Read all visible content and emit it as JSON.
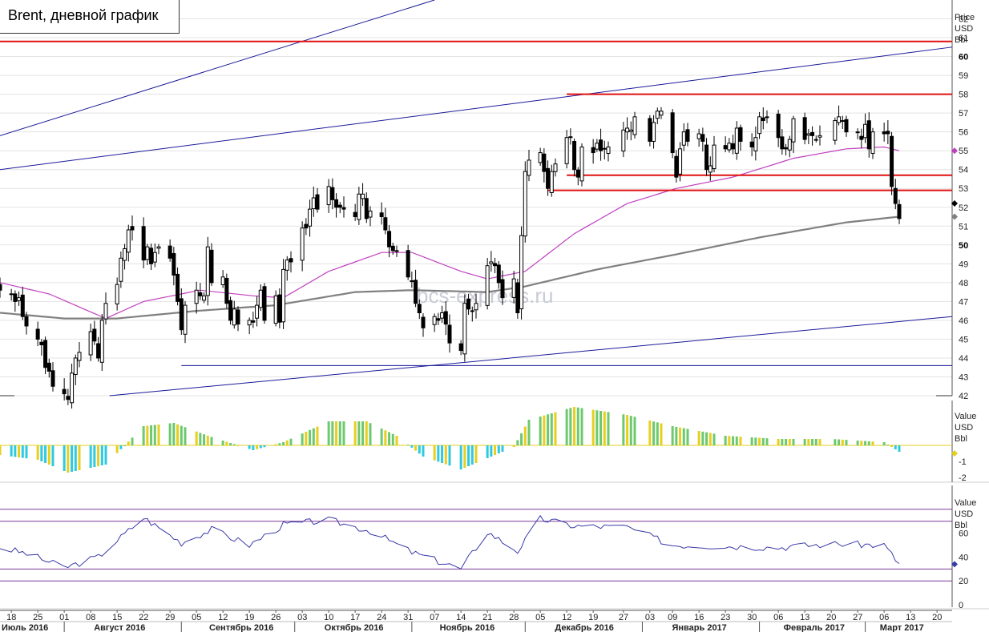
{
  "title": "Brent, дневной график",
  "watermark": "bcs-express.ru",
  "colors": {
    "bg": "#ffffff",
    "grid": "#e3e3e3",
    "candle": "#000000",
    "red_level": "#e01010",
    "trend_line": "#1a1a9a",
    "ma_fast": "#c040c0",
    "ma_slow": "#808080",
    "hist_yellow": "#e6cf1f",
    "hist_cyan": "#2fc9e0",
    "hist_green": "#6ec86e",
    "rsi_line": "#3a3aa8",
    "rsi_band": "#7a3a9a"
  },
  "price_axis": {
    "title_lines": [
      "Price",
      "USD",
      "Bbl"
    ]
  },
  "macd_axis": {
    "title_lines": [
      "Value",
      "USD",
      "Bbl"
    ]
  },
  "rsi_axis": {
    "title_lines": [
      "Value",
      "USD",
      "Bbl"
    ]
  },
  "x_day_labels": [
    "18",
    "25",
    "01",
    "08",
    "15",
    "22",
    "29",
    "05",
    "12",
    "19",
    "26",
    "03",
    "10",
    "17",
    "24",
    "31",
    "07",
    "14",
    "21",
    "28",
    "05",
    "12",
    "19",
    "27",
    "03",
    "09",
    "16",
    "23",
    "30",
    "06",
    "13",
    "20",
    "27",
    "06",
    "13",
    "20"
  ],
  "x_month_labels": [
    "Июль 2016",
    "Август 2016",
    "Сентябрь 2016",
    "Октябрь 2016",
    "Ноябрь 2016",
    "Декабрь 2016",
    "Январь 2017",
    "Февраль 2017",
    "Март 2017"
  ],
  "chart_data": [
    {
      "type": "candlestick",
      "title": "Brent, дневной график",
      "ylabel": "Price USD Bbl",
      "ylim": [
        42,
        63
      ],
      "yticks": [
        42,
        43,
        44,
        45,
        46,
        47,
        48,
        49,
        50,
        51,
        52,
        53,
        54,
        55,
        56,
        57,
        58,
        59,
        60,
        61,
        62
      ],
      "ytick_bold": [
        50,
        60
      ],
      "x_range": [
        "2016-07-15",
        "2017-03-24"
      ],
      "close_series": [
        [
          "2016-07-15",
          47.6
        ],
        [
          "2016-07-18",
          47.4
        ],
        [
          "2016-07-19",
          47.0
        ],
        [
          "2016-07-20",
          47.2
        ],
        [
          "2016-07-21",
          46.2
        ],
        [
          "2016-07-22",
          45.7
        ],
        [
          "2016-07-25",
          45.0
        ],
        [
          "2016-07-26",
          44.7
        ],
        [
          "2016-07-27",
          43.5
        ],
        [
          "2016-07-28",
          43.3
        ],
        [
          "2016-07-29",
          42.5
        ],
        [
          "2016-08-01",
          42.1
        ],
        [
          "2016-08-02",
          41.8
        ],
        [
          "2016-08-03",
          43.2
        ],
        [
          "2016-08-04",
          44.0
        ],
        [
          "2016-08-05",
          44.3
        ],
        [
          "2016-08-08",
          45.4
        ],
        [
          "2016-08-09",
          44.9
        ],
        [
          "2016-08-10",
          44.0
        ],
        [
          "2016-08-11",
          46.0
        ],
        [
          "2016-08-12",
          46.9
        ],
        [
          "2016-08-15",
          47.9
        ],
        [
          "2016-08-16",
          49.3
        ],
        [
          "2016-08-17",
          49.8
        ],
        [
          "2016-08-18",
          50.8
        ],
        [
          "2016-08-19",
          50.8
        ],
        [
          "2016-08-22",
          49.2
        ],
        [
          "2016-08-23",
          49.9
        ],
        [
          "2016-08-24",
          49.0
        ],
        [
          "2016-08-25",
          49.6
        ],
        [
          "2016-08-26",
          49.9
        ],
        [
          "2016-08-29",
          49.3
        ],
        [
          "2016-08-30",
          48.4
        ],
        [
          "2016-08-31",
          47.0
        ],
        [
          "2016-09-01",
          45.5
        ],
        [
          "2016-09-02",
          46.8
        ],
        [
          "2016-09-05",
          47.6
        ],
        [
          "2016-09-06",
          47.3
        ],
        [
          "2016-09-07",
          47.3
        ],
        [
          "2016-09-08",
          49.9
        ],
        [
          "2016-09-09",
          48.0
        ],
        [
          "2016-09-12",
          48.3
        ],
        [
          "2016-09-13",
          46.9
        ],
        [
          "2016-09-14",
          46.0
        ],
        [
          "2016-09-15",
          46.6
        ],
        [
          "2016-09-16",
          45.8
        ],
        [
          "2016-09-19",
          46.0
        ],
        [
          "2016-09-20",
          45.9
        ],
        [
          "2016-09-21",
          46.8
        ],
        [
          "2016-09-22",
          47.6
        ],
        [
          "2016-09-23",
          46.0
        ],
        [
          "2016-09-26",
          47.3
        ],
        [
          "2016-09-27",
          45.9
        ],
        [
          "2016-09-28",
          48.7
        ],
        [
          "2016-09-29",
          49.2
        ],
        [
          "2016-09-30",
          49.1
        ],
        [
          "2016-10-03",
          50.9
        ],
        [
          "2016-10-04",
          50.9
        ],
        [
          "2016-10-05",
          51.9
        ],
        [
          "2016-10-06",
          52.5
        ],
        [
          "2016-10-07",
          51.9
        ],
        [
          "2016-10-10",
          53.1
        ],
        [
          "2016-10-11",
          52.4
        ],
        [
          "2016-10-12",
          52.0
        ],
        [
          "2016-10-13",
          52.0
        ],
        [
          "2016-10-14",
          51.9
        ],
        [
          "2016-10-17",
          51.5
        ],
        [
          "2016-10-18",
          52.7
        ],
        [
          "2016-10-19",
          52.7
        ],
        [
          "2016-10-20",
          51.4
        ],
        [
          "2016-10-21",
          51.8
        ],
        [
          "2016-10-24",
          51.5
        ],
        [
          "2016-10-25",
          50.8
        ],
        [
          "2016-10-26",
          49.9
        ],
        [
          "2016-10-27",
          49.7
        ],
        [
          "2016-10-28",
          49.7
        ],
        [
          "2016-10-31",
          48.3
        ],
        [
          "2016-11-01",
          48.1
        ],
        [
          "2016-11-02",
          46.9
        ],
        [
          "2016-11-03",
          46.4
        ],
        [
          "2016-11-04",
          45.6
        ],
        [
          "2016-11-07",
          46.2
        ],
        [
          "2016-11-08",
          46.0
        ],
        [
          "2016-11-09",
          46.4
        ],
        [
          "2016-11-10",
          45.8
        ],
        [
          "2016-11-11",
          44.8
        ],
        [
          "2016-11-14",
          44.4
        ],
        [
          "2016-11-15",
          46.9
        ],
        [
          "2016-11-16",
          46.6
        ],
        [
          "2016-11-17",
          46.5
        ],
        [
          "2016-11-18",
          46.9
        ],
        [
          "2016-11-21",
          48.9
        ],
        [
          "2016-11-22",
          49.1
        ],
        [
          "2016-11-23",
          48.9
        ],
        [
          "2016-11-24",
          48.0
        ],
        [
          "2016-11-25",
          47.2
        ],
        [
          "2016-11-28",
          48.2
        ],
        [
          "2016-11-29",
          46.4
        ],
        [
          "2016-11-30",
          50.5
        ],
        [
          "2016-12-01",
          53.9
        ],
        [
          "2016-12-02",
          54.5
        ],
        [
          "2016-12-05",
          54.9
        ],
        [
          "2016-12-06",
          53.9
        ],
        [
          "2016-12-07",
          53.0
        ],
        [
          "2016-12-08",
          53.9
        ],
        [
          "2016-12-09",
          54.3
        ],
        [
          "2016-12-12",
          55.7
        ],
        [
          "2016-12-13",
          55.7
        ],
        [
          "2016-12-14",
          54.0
        ],
        [
          "2016-12-15",
          53.6
        ],
        [
          "2016-12-16",
          55.2
        ],
        [
          "2016-12-19",
          54.9
        ],
        [
          "2016-12-20",
          55.4
        ],
        [
          "2016-12-21",
          55.0
        ],
        [
          "2016-12-22",
          55.1
        ],
        [
          "2016-12-23",
          55.2
        ],
        [
          "2016-12-27",
          56.1
        ],
        [
          "2016-12-28",
          56.2
        ],
        [
          "2016-12-29",
          56.1
        ],
        [
          "2016-12-30",
          56.8
        ],
        [
          "2017-01-03",
          55.5
        ],
        [
          "2017-01-04",
          56.5
        ],
        [
          "2017-01-05",
          57.1
        ],
        [
          "2017-01-06",
          57.1
        ],
        [
          "2017-01-09",
          54.9
        ],
        [
          "2017-01-10",
          53.6
        ],
        [
          "2017-01-11",
          55.1
        ],
        [
          "2017-01-12",
          56.0
        ],
        [
          "2017-01-13",
          55.5
        ],
        [
          "2017-01-16",
          55.9
        ],
        [
          "2017-01-17",
          55.5
        ],
        [
          "2017-01-18",
          54.0
        ],
        [
          "2017-01-19",
          54.2
        ],
        [
          "2017-01-20",
          55.3
        ],
        [
          "2017-01-23",
          55.1
        ],
        [
          "2017-01-24",
          55.4
        ],
        [
          "2017-01-25",
          55.1
        ],
        [
          "2017-01-26",
          56.2
        ],
        [
          "2017-01-27",
          55.5
        ],
        [
          "2017-01-30",
          55.2
        ],
        [
          "2017-01-31",
          55.7
        ],
        [
          "2017-02-01",
          56.8
        ],
        [
          "2017-02-02",
          56.6
        ],
        [
          "2017-02-03",
          56.8
        ],
        [
          "2017-02-06",
          55.7
        ],
        [
          "2017-02-07",
          55.1
        ],
        [
          "2017-02-08",
          55.1
        ],
        [
          "2017-02-09",
          55.6
        ],
        [
          "2017-02-10",
          56.7
        ],
        [
          "2017-02-13",
          55.6
        ],
        [
          "2017-02-14",
          55.9
        ],
        [
          "2017-02-15",
          55.8
        ],
        [
          "2017-02-16",
          55.6
        ],
        [
          "2017-02-17",
          55.8
        ],
        [
          "2017-02-21",
          56.6
        ],
        [
          "2017-02-22",
          56.8
        ],
        [
          "2017-02-23",
          56.6
        ],
        [
          "2017-02-24",
          56.0
        ],
        [
          "2017-02-27",
          56.0
        ],
        [
          "2017-02-28",
          55.6
        ],
        [
          "2017-03-01",
          56.4
        ],
        [
          "2017-03-02",
          55.1
        ],
        [
          "2017-03-03",
          56.0
        ],
        [
          "2017-03-06",
          55.9
        ],
        [
          "2017-03-07",
          55.9
        ],
        [
          "2017-03-08",
          53.1
        ],
        [
          "2017-03-09",
          52.2
        ],
        [
          "2017-03-10",
          51.4
        ]
      ],
      "horizontal_levels": [
        {
          "y": 60.8,
          "x_from": "2016-07-15",
          "x_to": "2017-03-24",
          "color": "#e01010"
        },
        {
          "y": 58.0,
          "x_from": "2016-12-12",
          "x_to": "2017-03-24",
          "color": "#e01010"
        },
        {
          "y": 53.7,
          "x_from": "2016-12-12",
          "x_to": "2017-03-24",
          "color": "#e01010"
        },
        {
          "y": 52.9,
          "x_from": "2016-12-07",
          "x_to": "2017-03-24",
          "color": "#e01010"
        },
        {
          "y": 43.6,
          "x_from": "2016-09-01",
          "x_to": "2017-03-24",
          "color": "#1a1a9a"
        }
      ],
      "trend_lines": [
        {
          "from": [
            "2016-07-15",
            55.8
          ],
          "to": [
            "2016-11-07",
            63.0
          ]
        },
        {
          "from": [
            "2016-07-15",
            54.0
          ],
          "to": [
            "2017-03-24",
            60.5
          ]
        },
        {
          "from": [
            "2016-08-13",
            42.0
          ],
          "to": [
            "2017-03-24",
            46.2
          ]
        }
      ],
      "ma_fast": [
        [
          "2016-07-15",
          48.0
        ],
        [
          "2016-07-28",
          47.4
        ],
        [
          "2016-08-12",
          46.1
        ],
        [
          "2016-08-22",
          47.0
        ],
        [
          "2016-09-06",
          47.6
        ],
        [
          "2016-09-20",
          47.3
        ],
        [
          "2016-09-28",
          47.2
        ],
        [
          "2016-10-10",
          48.6
        ],
        [
          "2016-10-24",
          49.6
        ],
        [
          "2016-11-01",
          49.6
        ],
        [
          "2016-11-14",
          48.6
        ],
        [
          "2016-11-21",
          48.2
        ],
        [
          "2016-12-01",
          48.6
        ],
        [
          "2016-12-14",
          50.6
        ],
        [
          "2016-12-28",
          52.2
        ],
        [
          "2017-01-10",
          53.0
        ],
        [
          "2017-01-25",
          53.6
        ],
        [
          "2017-02-10",
          54.6
        ],
        [
          "2017-02-24",
          55.1
        ],
        [
          "2017-03-06",
          55.2
        ],
        [
          "2017-03-10",
          55.0
        ]
      ],
      "ma_slow": [
        [
          "2016-07-15",
          46.4
        ],
        [
          "2016-08-01",
          46.1
        ],
        [
          "2016-08-15",
          46.1
        ],
        [
          "2016-09-05",
          46.5
        ],
        [
          "2016-09-26",
          46.8
        ],
        [
          "2016-10-17",
          47.5
        ],
        [
          "2016-11-01",
          47.6
        ],
        [
          "2016-11-21",
          47.5
        ],
        [
          "2016-12-01",
          47.8
        ],
        [
          "2016-12-20",
          48.7
        ],
        [
          "2017-01-10",
          49.5
        ],
        [
          "2017-02-01",
          50.4
        ],
        [
          "2017-02-24",
          51.2
        ],
        [
          "2017-03-10",
          51.5
        ]
      ],
      "last_price_markers": [
        55.0,
        52.2,
        51.5
      ]
    },
    {
      "type": "bar",
      "title": "",
      "ylabel": "Value USD Bbl",
      "ylim": [
        -2.3,
        2.8
      ],
      "yticks": [
        -2,
        -1
      ],
      "signal_line": 0,
      "histogram": [
        [
          "2016-07-15",
          -0.6
        ],
        [
          "2016-07-25",
          -0.9
        ],
        [
          "2016-08-02",
          -1.7
        ],
        [
          "2016-08-12",
          -1.2
        ],
        [
          "2016-08-22",
          1.2
        ],
        [
          "2016-08-30",
          1.4
        ],
        [
          "2016-09-08",
          0.6
        ],
        [
          "2016-09-20",
          -0.3
        ],
        [
          "2016-09-28",
          0.2
        ],
        [
          "2016-10-10",
          1.5
        ],
        [
          "2016-10-20",
          1.5
        ],
        [
          "2016-10-28",
          0.6
        ],
        [
          "2016-11-04",
          -0.7
        ],
        [
          "2016-11-14",
          -1.5
        ],
        [
          "2016-11-28",
          -0.1
        ],
        [
          "2016-12-02",
          1.6
        ],
        [
          "2016-12-14",
          2.4
        ],
        [
          "2016-12-28",
          1.9
        ],
        [
          "2017-01-09",
          1.2
        ],
        [
          "2017-01-23",
          0.6
        ],
        [
          "2017-02-06",
          0.4
        ],
        [
          "2017-02-20",
          0.4
        ],
        [
          "2017-03-06",
          0.2
        ],
        [
          "2017-03-10",
          -0.4
        ]
      ],
      "last_marker": 0
    },
    {
      "type": "line",
      "title": "",
      "ylabel": "Value USD Bbl",
      "ylim": [
        -2,
        100
      ],
      "yticks": [
        0,
        20,
        40,
        60
      ],
      "bands": [
        20,
        30,
        70,
        80
      ],
      "series": [
        [
          "2016-07-15",
          48
        ],
        [
          "2016-07-22",
          43
        ],
        [
          "2016-08-01",
          31
        ],
        [
          "2016-08-10",
          40
        ],
        [
          "2016-08-22",
          73
        ],
        [
          "2016-09-01",
          52
        ],
        [
          "2016-09-09",
          63
        ],
        [
          "2016-09-19",
          50
        ],
        [
          "2016-09-28",
          67
        ],
        [
          "2016-10-10",
          71
        ],
        [
          "2016-10-21",
          62
        ],
        [
          "2016-11-01",
          44
        ],
        [
          "2016-11-14",
          30
        ],
        [
          "2016-11-21",
          61
        ],
        [
          "2016-11-29",
          45
        ],
        [
          "2016-12-05",
          72
        ],
        [
          "2016-12-14",
          66
        ],
        [
          "2016-12-28",
          65
        ],
        [
          "2017-01-09",
          50
        ],
        [
          "2017-01-25",
          49
        ],
        [
          "2017-02-06",
          48
        ],
        [
          "2017-02-20",
          51
        ],
        [
          "2017-03-06",
          50
        ],
        [
          "2017-03-10",
          34
        ]
      ],
      "last_marker": 34
    }
  ]
}
